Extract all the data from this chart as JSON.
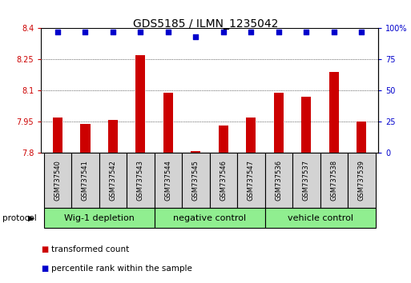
{
  "title": "GDS5185 / ILMN_1235042",
  "samples": [
    "GSM737540",
    "GSM737541",
    "GSM737542",
    "GSM737543",
    "GSM737544",
    "GSM737545",
    "GSM737546",
    "GSM737547",
    "GSM737536",
    "GSM737537",
    "GSM737538",
    "GSM737539"
  ],
  "transformed_counts": [
    7.97,
    7.94,
    7.96,
    8.27,
    8.09,
    7.81,
    7.93,
    7.97,
    8.09,
    8.07,
    8.19,
    7.95
  ],
  "percentile_ranks": [
    97,
    97,
    97,
    97,
    97,
    93,
    97,
    97,
    97,
    97,
    97,
    97
  ],
  "ylim_left": [
    7.8,
    8.4
  ],
  "ylim_right": [
    0,
    100
  ],
  "yticks_left": [
    7.8,
    7.95,
    8.1,
    8.25,
    8.4
  ],
  "yticks_right": [
    0,
    25,
    50,
    75,
    100
  ],
  "bar_color": "#cc0000",
  "dot_color": "#0000cc",
  "groups": [
    {
      "label": "Wig-1 depletion",
      "start": 0,
      "end": 4,
      "color": "#90ee90"
    },
    {
      "label": "negative control",
      "start": 4,
      "end": 8,
      "color": "#90ee90"
    },
    {
      "label": "vehicle control",
      "start": 8,
      "end": 12,
      "color": "#90ee90"
    }
  ],
  "legend_items": [
    {
      "label": "transformed count",
      "color": "#cc0000"
    },
    {
      "label": "percentile rank within the sample",
      "color": "#0000cc"
    }
  ],
  "bar_color_left": "#cc0000",
  "axis_right_color": "#0000cc",
  "background_color": "#ffffff",
  "bar_base": 7.8,
  "bar_width": 0.35,
  "sample_box_color": "#d3d3d3",
  "title_fontsize": 10,
  "tick_fontsize": 7,
  "label_fontsize": 6,
  "group_fontsize": 8,
  "legend_fontsize": 7.5
}
